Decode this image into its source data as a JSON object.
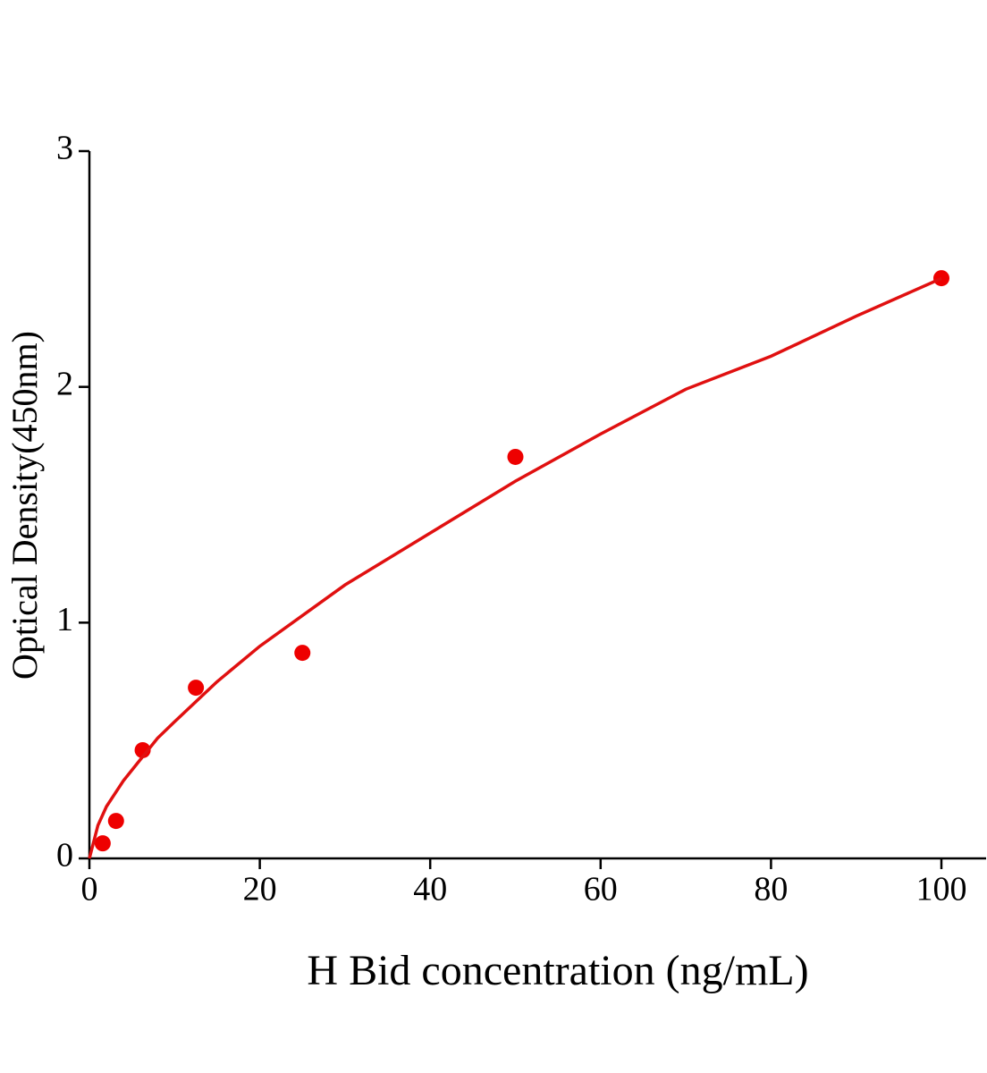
{
  "chart_data": {
    "type": "scatter",
    "x_label": "H Bid concentration (ng/mL)",
    "y_label": "Optical Density(450nm)",
    "xlim": [
      0,
      105
    ],
    "xticks": [
      0,
      20,
      40,
      60,
      80,
      100
    ],
    "ylim": [
      0,
      3
    ],
    "yticks": [
      0,
      1,
      2,
      3
    ],
    "grid": false,
    "series": [
      {
        "mode": "markers",
        "color": "#ee0000",
        "x": [
          1.56,
          3.125,
          6.25,
          12.5,
          25,
          50,
          100
        ],
        "values": [
          0.064,
          0.159,
          0.459,
          0.724,
          0.872,
          1.703,
          2.461
        ]
      },
      {
        "mode": "line",
        "color": "#e01010",
        "x": [
          0,
          1,
          2,
          4,
          6,
          8,
          10,
          15,
          20,
          25,
          30,
          40,
          50,
          60,
          70,
          80,
          90,
          100
        ],
        "values": [
          0,
          0.14,
          0.22,
          0.33,
          0.42,
          0.51,
          0.58,
          0.75,
          0.9,
          1.03,
          1.16,
          1.38,
          1.6,
          1.8,
          1.99,
          2.13,
          2.3,
          2.46
        ]
      }
    ]
  }
}
